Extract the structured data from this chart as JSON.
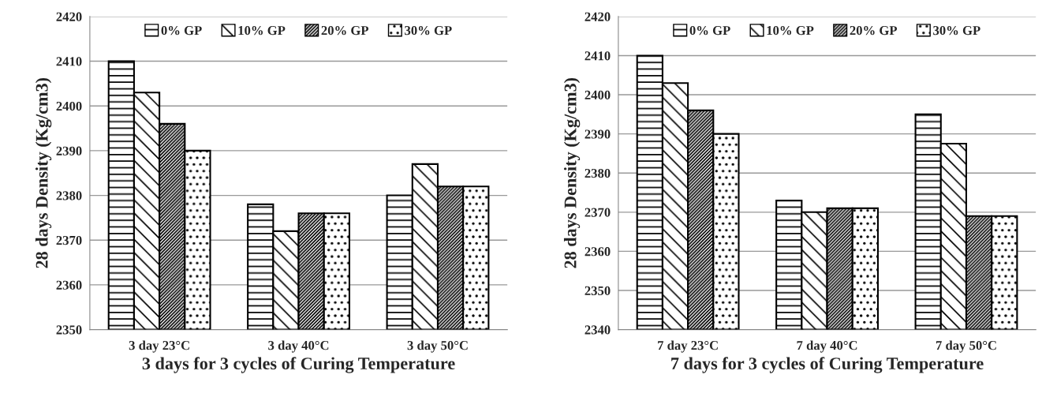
{
  "chart_data": [
    {
      "type": "bar",
      "xlabel": "3 days for 3 cycles of Curing Temperature",
      "ylabel": "28 days Density (Kg/cm3)",
      "categories": [
        "3 day 23°C",
        "3 day 40°C",
        "3 day 50°C"
      ],
      "series": [
        {
          "name": "0% GP",
          "color": "#000000",
          "values": [
            2410,
            2378,
            2380
          ]
        },
        {
          "name": "10% GP",
          "color": "#000000",
          "values": [
            2403,
            2372,
            2387
          ]
        },
        {
          "name": "20% GP",
          "color": "#000000",
          "values": [
            2396,
            2376,
            2382
          ]
        },
        {
          "name": "30% GP",
          "color": "#000000",
          "values": [
            2390,
            2376,
            2382
          ]
        }
      ],
      "ylim": [
        2350,
        2420
      ],
      "yticks": [
        2350,
        2360,
        2370,
        2380,
        2390,
        2400,
        2410,
        2420
      ],
      "grid": "y",
      "legend": "top"
    },
    {
      "type": "bar",
      "xlabel": "7 days for 3 cycles of Curing Temperature",
      "ylabel": "28 days Density (Kg/cm3)",
      "categories": [
        "7 day 23°C",
        "7 day 40°C",
        "7 day 50°C"
      ],
      "series": [
        {
          "name": "0% GP",
          "color": "#000000",
          "values": [
            2410,
            2373,
            2395
          ]
        },
        {
          "name": "10% GP",
          "color": "#000000",
          "values": [
            2403,
            2370,
            2387.5
          ]
        },
        {
          "name": "20% GP",
          "color": "#000000",
          "values": [
            2396,
            2371,
            2369
          ]
        },
        {
          "name": "30% GP",
          "color": "#000000",
          "values": [
            2390,
            2371,
            2369
          ]
        }
      ],
      "ylim": [
        2340,
        2420
      ],
      "yticks": [
        2340,
        2350,
        2360,
        2370,
        2380,
        2390,
        2400,
        2410,
        2420
      ],
      "grid": "y",
      "legend": "top"
    }
  ]
}
